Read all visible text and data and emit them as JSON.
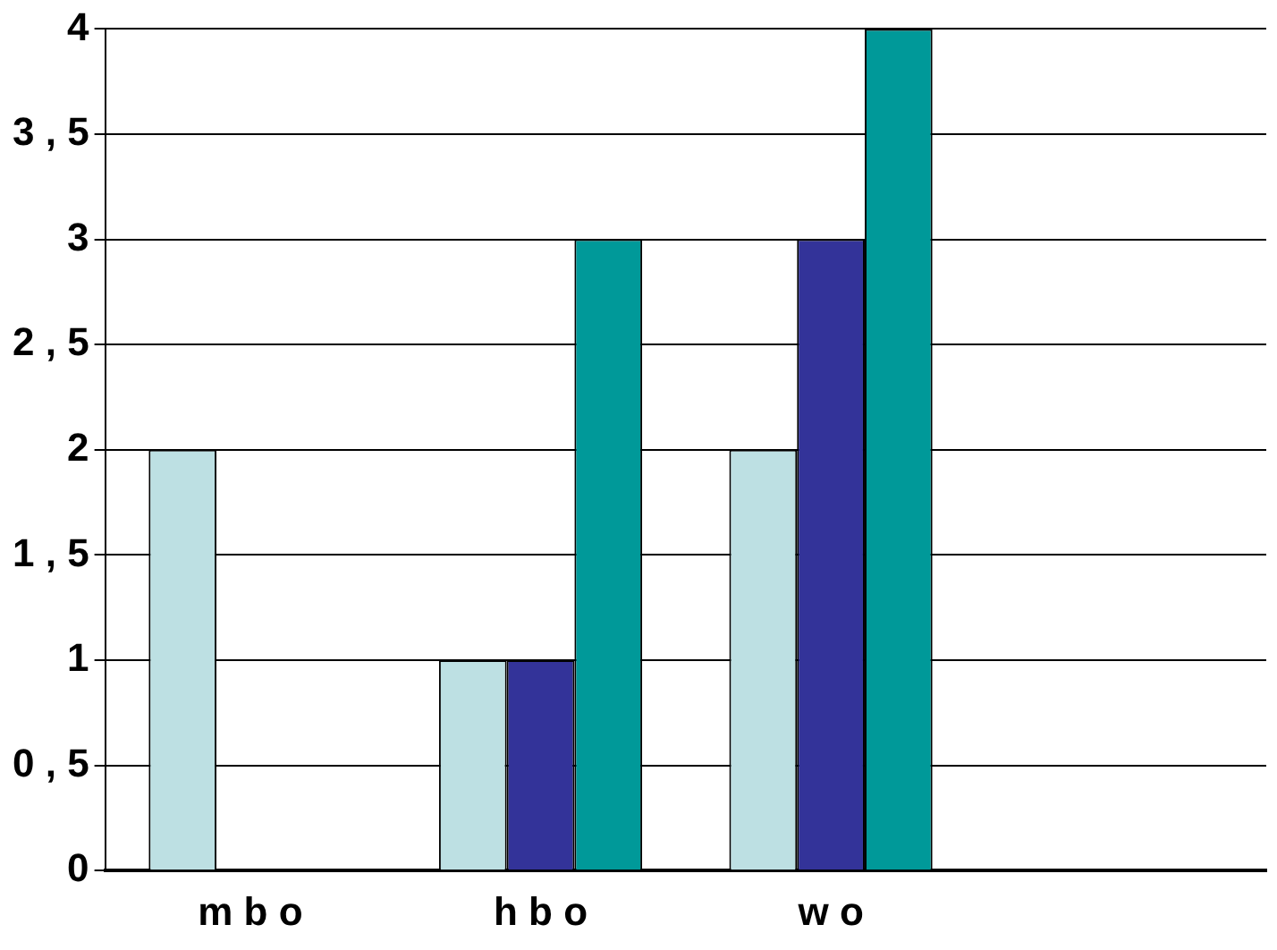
{
  "chart_data": {
    "type": "bar",
    "categories": [
      "m b o",
      "h b o",
      "w o",
      null
    ],
    "series": [
      {
        "color": "#bde0e3",
        "values": [
          2,
          1,
          2,
          null
        ]
      },
      {
        "color": "#333399",
        "values": [
          0,
          1,
          3,
          null
        ]
      },
      {
        "color": "#009999",
        "values": [
          0,
          3,
          4,
          null
        ]
      }
    ],
    "ylim": [
      0,
      4
    ],
    "yticks": [
      0,
      {
        "value": 0.5,
        "label": "0 , 5"
      },
      1,
      {
        "value": 1.5,
        "label": "1 , 5"
      },
      2,
      {
        "value": 2.5,
        "label": "2 , 5"
      },
      3,
      {
        "value": 3.5,
        "label": "3 , 5"
      },
      4
    ],
    "grid": "y",
    "legend": false
  }
}
